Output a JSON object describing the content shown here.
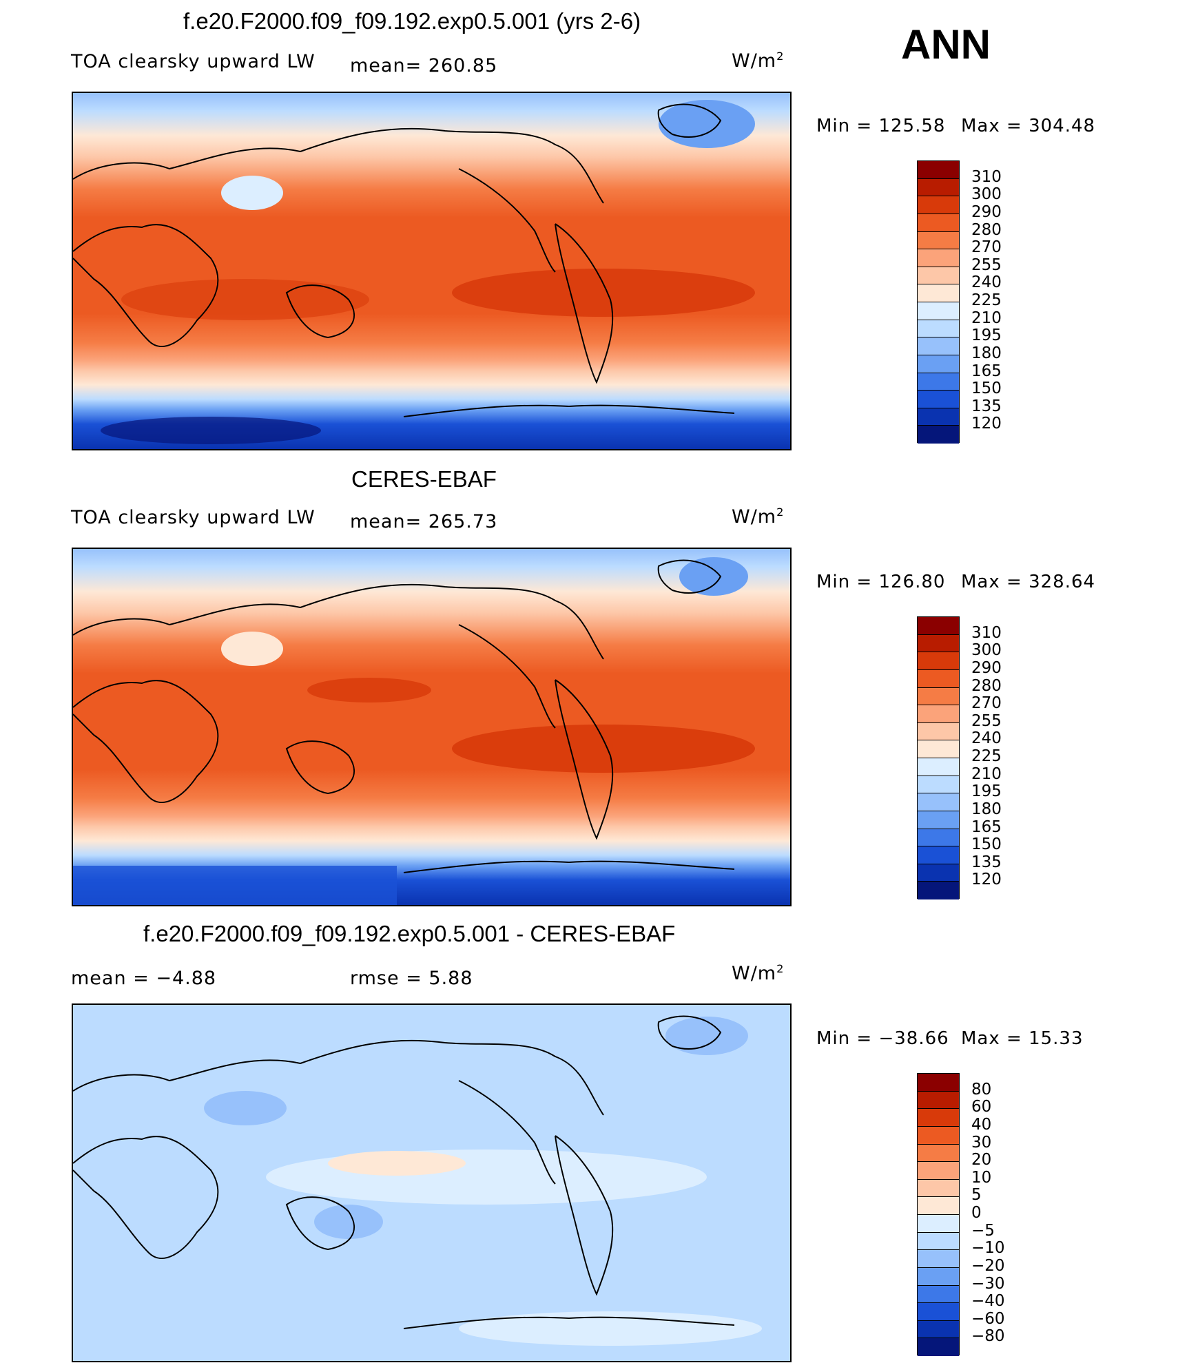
{
  "header": {
    "season": "ANN"
  },
  "panels": [
    {
      "title": "f.e20.F2000.f09_f09.192.exp0.5.001 (yrs 2-6)",
      "variable": "TOA clearsky upward LW",
      "stat_left_label": "",
      "stat_left_value": "",
      "stat_mid": "mean=  260.85",
      "units": "W/m",
      "units_sup": "2",
      "min_label": "Min  =  125.58",
      "max_label": "Max  =  304.48",
      "colorbar": {
        "levels": [
          "310",
          "300",
          "290",
          "280",
          "270",
          "255",
          "240",
          "225",
          "210",
          "195",
          "180",
          "165",
          "150",
          "135",
          "120"
        ],
        "colors": [
          "#8b0000",
          "#b81c00",
          "#d83a0a",
          "#ec5a22",
          "#f57c45",
          "#fba37a",
          "#fdc7a8",
          "#fee8d6",
          "#dceeff",
          "#bcdcff",
          "#97c1fb",
          "#6aa0f3",
          "#3d78e8",
          "#1a51d6",
          "#0a33b0",
          "#05167a"
        ]
      }
    },
    {
      "title": "CERES-EBAF",
      "variable": "TOA clearsky upward LW",
      "stat_left_label": "",
      "stat_left_value": "",
      "stat_mid": "mean=  265.73",
      "units": "W/m",
      "units_sup": "2",
      "min_label": "Min  =  126.80",
      "max_label": "Max  =  328.64",
      "colorbar": {
        "levels": [
          "310",
          "300",
          "290",
          "280",
          "270",
          "255",
          "240",
          "225",
          "210",
          "195",
          "180",
          "165",
          "150",
          "135",
          "120"
        ],
        "colors": [
          "#8b0000",
          "#b81c00",
          "#d83a0a",
          "#ec5a22",
          "#f57c45",
          "#fba37a",
          "#fdc7a8",
          "#fee8d6",
          "#dceeff",
          "#bcdcff",
          "#97c1fb",
          "#6aa0f3",
          "#3d78e8",
          "#1a51d6",
          "#0a33b0",
          "#05167a"
        ]
      }
    },
    {
      "title": "f.e20.F2000.f09_f09.192.exp0.5.001 - CERES-EBAF",
      "variable": "",
      "stat_left_label": "mean  =   −4.88",
      "stat_left_value": "",
      "stat_mid": "rmse  =    5.88",
      "units": "W/m",
      "units_sup": "2",
      "min_label": "Min  = −38.66",
      "max_label": "Max  =   15.33",
      "colorbar": {
        "levels": [
          "80",
          "60",
          "40",
          "30",
          "20",
          "10",
          "5",
          "0",
          "−5",
          "−10",
          "−20",
          "−30",
          "−40",
          "−60",
          "−80"
        ],
        "colors": [
          "#8b0000",
          "#b81c00",
          "#d83a0a",
          "#ec5a22",
          "#f57c45",
          "#fba37a",
          "#fdc7a8",
          "#fee8d6",
          "#dceeff",
          "#bcdcff",
          "#97c1fb",
          "#6aa0f3",
          "#3d78e8",
          "#1a51d6",
          "#0a33b0",
          "#05167a"
        ]
      }
    }
  ]
}
